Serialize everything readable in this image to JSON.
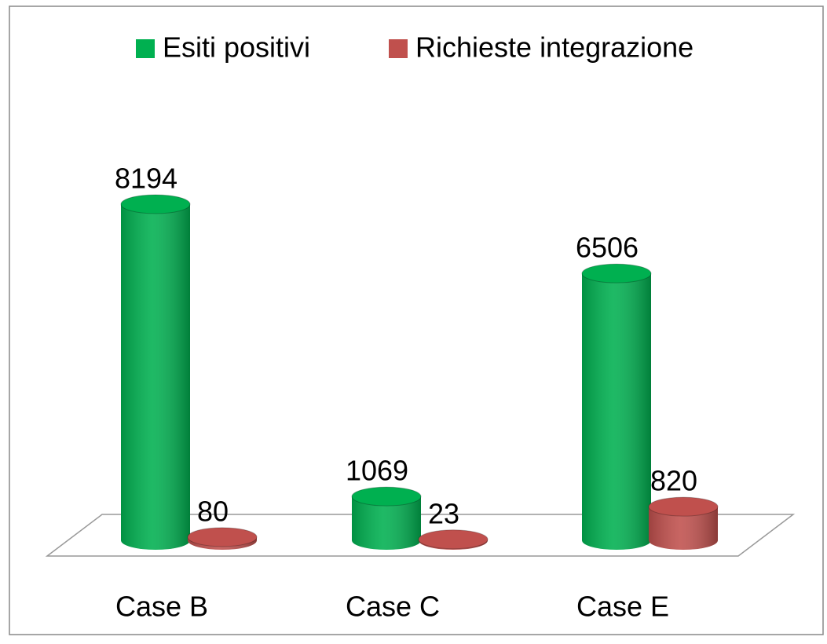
{
  "chart_data": {
    "type": "bar3d",
    "categories": [
      "Case B",
      "Case C",
      "Case E"
    ],
    "series": [
      {
        "name": "Esiti positivi",
        "color": "#00b050",
        "values": [
          8194,
          1069,
          6506
        ]
      },
      {
        "name": "Richieste integrazione",
        "color": "#c0504d",
        "values": [
          80,
          23,
          820
        ]
      }
    ],
    "legend": "top"
  }
}
